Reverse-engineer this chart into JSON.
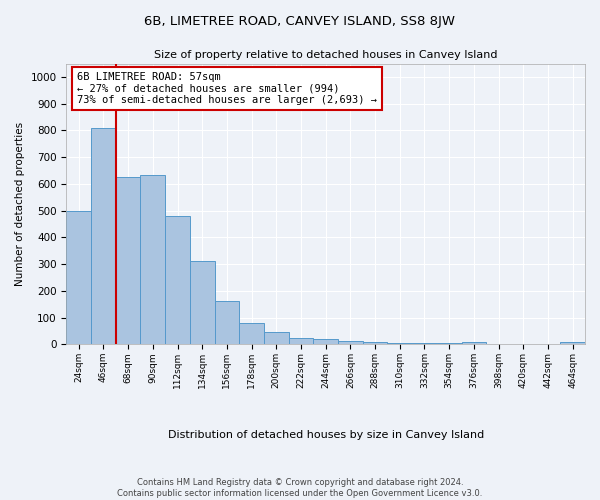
{
  "title": "6B, LIMETREE ROAD, CANVEY ISLAND, SS8 8JW",
  "subtitle": "Size of property relative to detached houses in Canvey Island",
  "xlabel": "Distribution of detached houses by size in Canvey Island",
  "ylabel": "Number of detached properties",
  "categories": [
    "24sqm",
    "46sqm",
    "68sqm",
    "90sqm",
    "112sqm",
    "134sqm",
    "156sqm",
    "178sqm",
    "200sqm",
    "222sqm",
    "244sqm",
    "266sqm",
    "288sqm",
    "310sqm",
    "332sqm",
    "354sqm",
    "376sqm",
    "398sqm",
    "420sqm",
    "442sqm",
    "464sqm"
  ],
  "values": [
    500,
    810,
    625,
    635,
    480,
    310,
    162,
    80,
    45,
    25,
    20,
    12,
    10,
    5,
    5,
    5,
    10,
    2,
    2,
    2,
    10
  ],
  "bar_color": "#aac4e0",
  "bar_edge_color": "#5599cc",
  "property_line_bin": 1.5,
  "annotation_text": "6B LIMETREE ROAD: 57sqm\n← 27% of detached houses are smaller (994)\n73% of semi-detached houses are larger (2,693) →",
  "annotation_box_color": "#ffffff",
  "annotation_box_edge_color": "#cc0000",
  "vline_color": "#cc0000",
  "ylim": [
    0,
    1050
  ],
  "yticks": [
    0,
    100,
    200,
    300,
    400,
    500,
    600,
    700,
    800,
    900,
    1000
  ],
  "footer_line1": "Contains HM Land Registry data © Crown copyright and database right 2024.",
  "footer_line2": "Contains public sector information licensed under the Open Government Licence v3.0.",
  "bg_color": "#eef2f8",
  "plot_bg_color": "#eef2f8",
  "grid_color": "#ffffff"
}
